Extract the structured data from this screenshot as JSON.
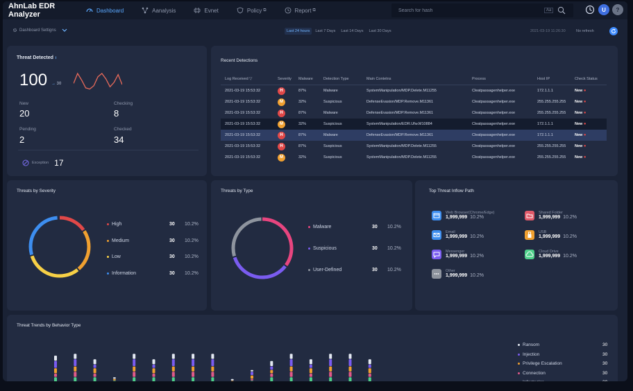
{
  "brand": "AhnLab EDR Analyzer",
  "nav": [
    {
      "label": "Dashboard",
      "icon": "gauge-icon",
      "active": true
    },
    {
      "label": "Aanalysis",
      "icon": "nodes-icon"
    },
    {
      "label": "Evnet",
      "icon": "event-icon"
    },
    {
      "label": "Policy",
      "icon": "shield-icon",
      "external": "⧉"
    },
    {
      "label": "Report",
      "icon": "clock-report-icon",
      "external": "⧉"
    }
  ],
  "search": {
    "placeholder": "Search for hash",
    "case_label": "Aa"
  },
  "user_initial": "U",
  "help_label": "?",
  "settings_label": "Dashboard Settigns",
  "time_ranges": [
    "Last 24 hours",
    "Last 7 Days",
    "Last 14 Days",
    "Last 30 Days"
  ],
  "timestamp": "2021-03-19 11:26:30",
  "refresh_label": "No refresh",
  "threat_detected": {
    "title": "Threat Detected",
    "info": "i",
    "total": "100",
    "delta_arrow": "→",
    "delta": "30",
    "new_label": "New",
    "new_value": "20",
    "checking_label": "Checking",
    "checking_value": "8",
    "pending_label": "Pending",
    "pending_value": "2",
    "checked_label": "Checked",
    "checked_value": "34",
    "exception_label": "Exception",
    "exception_value": "17"
  },
  "recent": {
    "title": "Recent Detections",
    "columns": [
      "Log Received",
      "Severity",
      "Malware",
      "Detection Type",
      "Main Contetns",
      "Process",
      "Host IP",
      "Check Status"
    ],
    "sort_arrow": "▽",
    "rows": [
      {
        "date": "2021-03-19 15:53:32",
        "sev": "H",
        "pct": "87%",
        "type": "Malware",
        "content": "SystemManipulation/MDP.Delete.M11255",
        "process": "Cleatpassagenhelper.exe",
        "ip": "172.1.1.1",
        "status": "New"
      },
      {
        "date": "2021-03-19 15:53:32",
        "sev": "M",
        "pct": "32%",
        "type": "Suspicious",
        "content": "DefenseEvasion/MDP.Remove.M11361",
        "process": "Cleatpassagenhelper.exe",
        "ip": "255.255.255.255",
        "status": "New"
      },
      {
        "date": "2021-03-19 15:53:32",
        "sev": "H",
        "pct": "87%",
        "type": "Malware",
        "content": "DefenseEvasion/MDP.Remove.M11361",
        "process": "Cleatpassagenhelper.exe",
        "ip": "255.255.255.255",
        "status": "New"
      },
      {
        "date": "2021-03-19 15:53:32",
        "sev": "M",
        "pct": "32%",
        "type": "Suspicious",
        "content": "SystemManipulation/EDR.Ufw.M10884",
        "process": "Cleatpassagenhelper.exe",
        "ip": "172.1.1.1",
        "status": "New"
      },
      {
        "date": "2021-03-19 15:53:32",
        "sev": "H",
        "pct": "87%",
        "type": "Malware",
        "content": "DefenseEvasion/MDP.Remove.M11361",
        "process": "Cleatpassagenhelper.exe",
        "ip": "172.1.1.1",
        "status": "New"
      },
      {
        "date": "2021-03-19 15:53:32",
        "sev": "H",
        "pct": "87%",
        "type": "Suspicious",
        "content": "SystemManipulation/MDP.Delete.M11255",
        "process": "Cleatpassagenhelper.exe",
        "ip": "255.255.255.255",
        "status": "New"
      },
      {
        "date": "2021-03-19 15:53:32",
        "sev": "M",
        "pct": "32%",
        "type": "Suspicious",
        "content": "SystemManipulation/MDP.Delete.M11255",
        "process": "Cleatpassagenhelper.exe",
        "ip": "255.255.255.255",
        "status": "New"
      }
    ]
  },
  "severity": {
    "title": "Threats by Severity",
    "items": [
      {
        "label": "High",
        "count": "30",
        "pct": "10.2%",
        "color": "#e14848"
      },
      {
        "label": "Medium",
        "count": "30",
        "pct": "10.2%",
        "color": "#f0a030"
      },
      {
        "label": "Low",
        "count": "30",
        "pct": "10.2%",
        "color": "#f7d046"
      },
      {
        "label": "Information",
        "count": "30",
        "pct": "10.2%",
        "color": "#3d8ef0"
      }
    ]
  },
  "types": {
    "title": "Threats by Type",
    "items": [
      {
        "label": "Malware",
        "count": "30",
        "pct": "10.2%",
        "color": "#e8457f"
      },
      {
        "label": "Suspicious",
        "count": "30",
        "pct": "10.2%",
        "color": "#7a5cf0"
      },
      {
        "label": "User-Defined",
        "count": "30",
        "pct": "10.2%",
        "color": "#8e949e"
      }
    ]
  },
  "inflow": {
    "title": "Top Threat Inflow Path",
    "items": [
      {
        "name": "Web Browser(Chrome/Edge)",
        "count": "1,999,999",
        "pct": "10.2%",
        "icon": "browser-icon",
        "color": "#3d8ef0"
      },
      {
        "name": "Shared Folder",
        "count": "1,999,999",
        "pct": "10.2%",
        "icon": "folder-icon",
        "color": "#e05a6a"
      },
      {
        "name": "Email",
        "count": "1,999,999",
        "pct": "10.2%",
        "icon": "email-icon",
        "color": "#3d8ef0"
      },
      {
        "name": "USB",
        "count": "1,999,999",
        "pct": "10.2%",
        "icon": "usb-icon",
        "color": "#f0a030"
      },
      {
        "name": "Messenger",
        "count": "1,999,999",
        "pct": "10.2%",
        "icon": "messenger-icon",
        "color": "#7a5cf0"
      },
      {
        "name": "Cloud Drive",
        "count": "1,999,999",
        "pct": "10.2%",
        "icon": "cloud-icon",
        "color": "#4fd08a"
      },
      {
        "name": "Other",
        "count": "1,999,999",
        "pct": "10.2%",
        "icon": "dots-icon",
        "color": "#8e949e"
      }
    ]
  },
  "trends": {
    "title": "Threat Trends by Behavior Type",
    "legend": [
      {
        "label": "Ransom",
        "value": "30",
        "color": "#e4e9f2"
      },
      {
        "label": "Injection",
        "value": "30",
        "color": "#7a5cf0"
      },
      {
        "label": "Privilege Escalation",
        "value": "30",
        "color": "#f0a030"
      },
      {
        "label": "Connection",
        "value": "30",
        "color": "#e05a8a"
      },
      {
        "label": "Infostealer",
        "value": "30",
        "color": "#4fd08a"
      }
    ]
  },
  "chart_data": {
    "type": "bar",
    "title": "Threat Trends by Behavior Type",
    "series": [
      {
        "name": "Ransom",
        "values": [
          3,
          3,
          3,
          1,
          3,
          3,
          3,
          3,
          3,
          1,
          1,
          3,
          3,
          3,
          3,
          3,
          3
        ]
      },
      {
        "name": "Injection",
        "values": [
          4,
          4,
          2,
          0,
          4,
          2,
          4,
          4,
          4,
          0,
          2,
          2,
          4,
          2,
          4,
          4,
          2
        ]
      },
      {
        "name": "Privilege Escalation",
        "values": [
          3,
          3,
          3,
          1,
          3,
          3,
          3,
          3,
          3,
          1,
          2,
          2,
          3,
          3,
          3,
          3,
          3
        ]
      },
      {
        "name": "Connection",
        "values": [
          2,
          3,
          2,
          0,
          3,
          2,
          3,
          3,
          3,
          0,
          1,
          2,
          3,
          2,
          3,
          3,
          2
        ]
      },
      {
        "name": "Infostealer",
        "values": [
          3,
          3,
          3,
          1,
          3,
          3,
          3,
          3,
          3,
          0,
          1,
          3,
          3,
          3,
          3,
          3,
          3
        ]
      }
    ]
  },
  "sparkline": [
    12,
    30,
    18,
    4,
    2,
    8,
    24,
    30,
    20,
    6,
    14,
    28,
    10
  ]
}
